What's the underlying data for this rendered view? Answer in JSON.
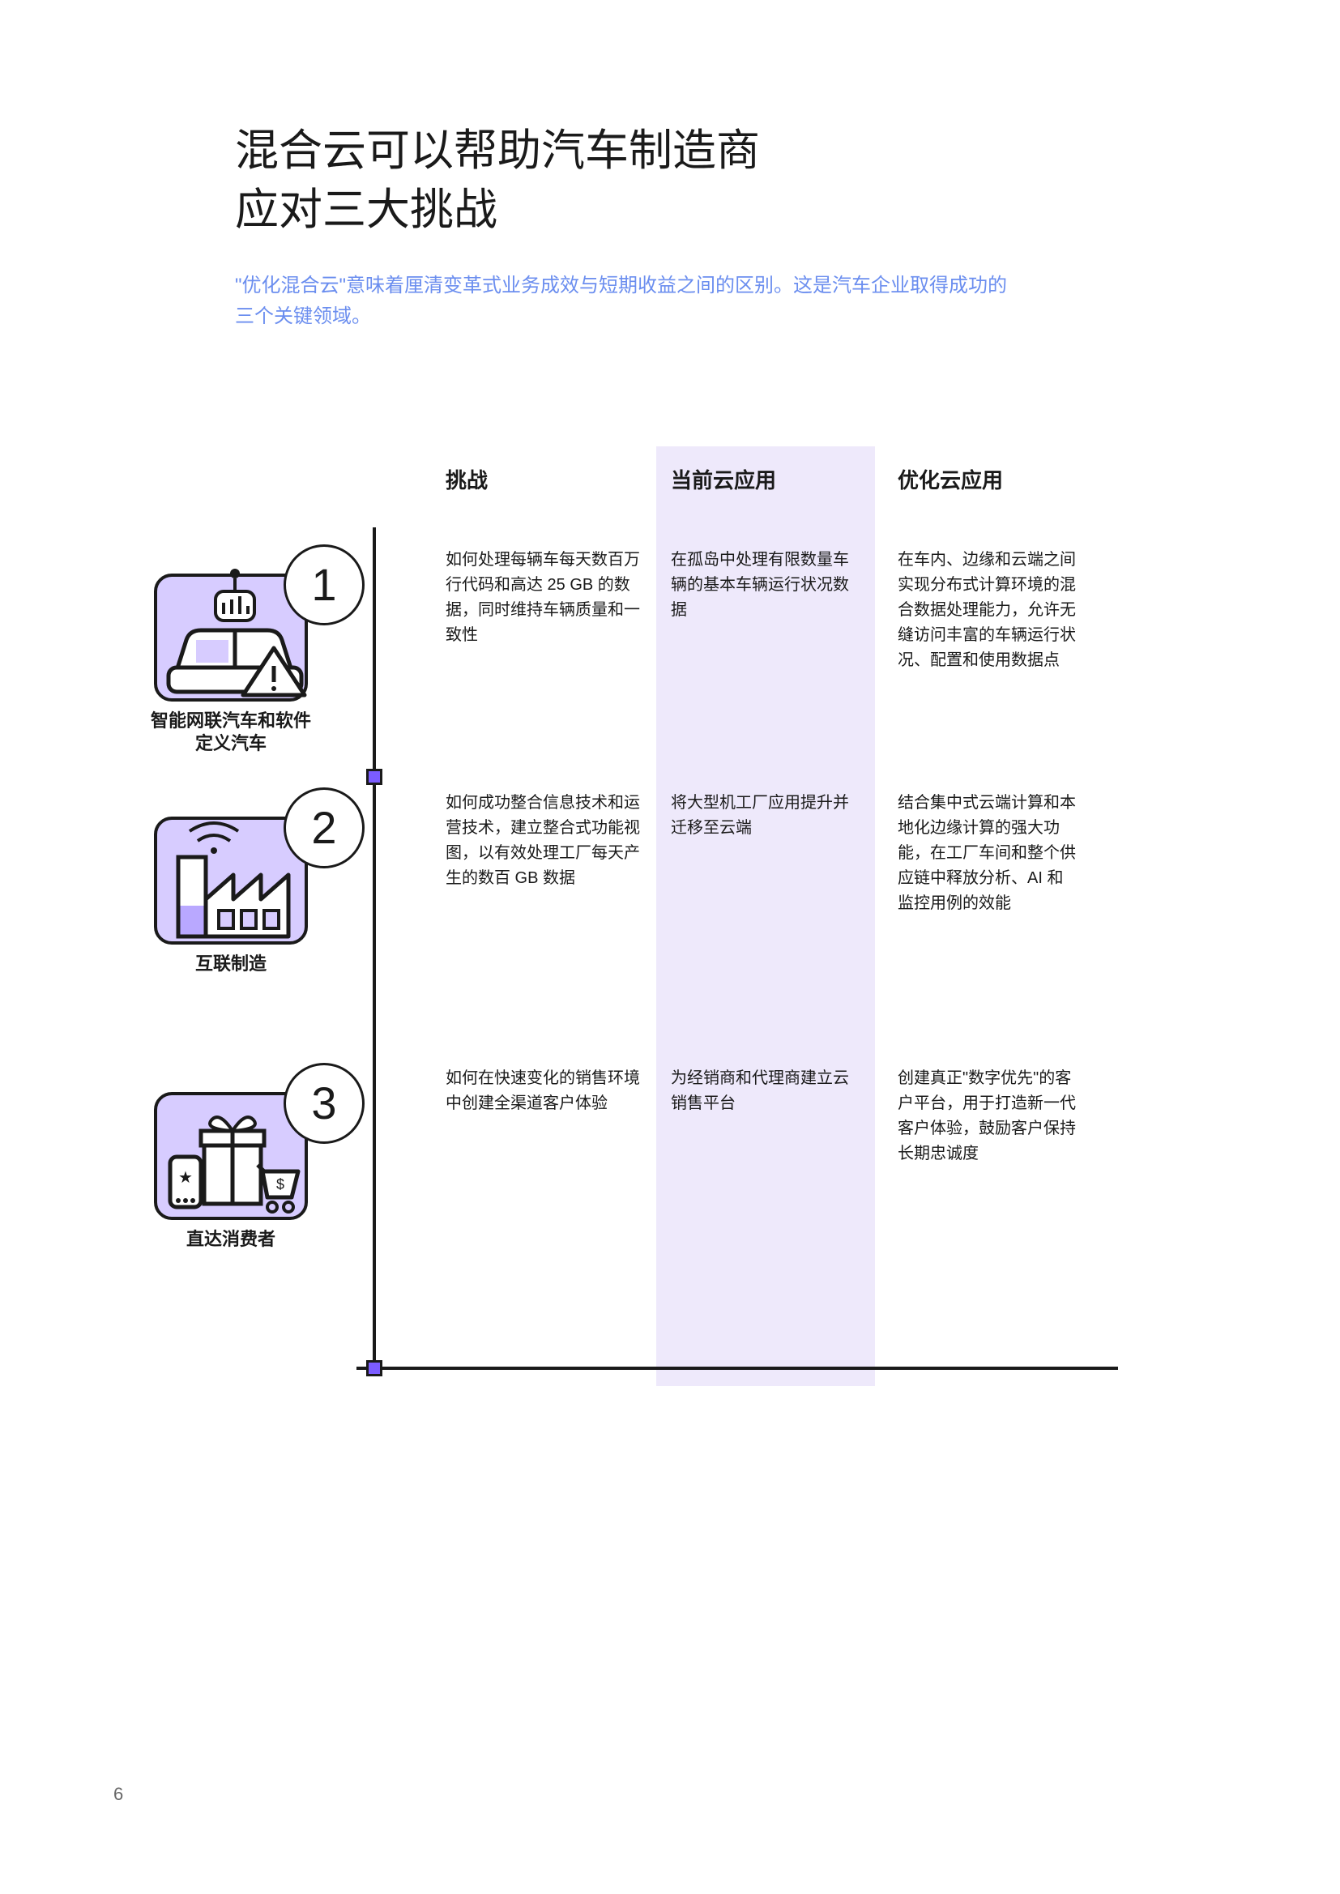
{
  "title": "混合云可以帮助汽车制造商\n应对三大挑战",
  "subtitle": "\"优化混合云\"意味着厘清变革式业务成效与短期收益之间的区别。这是汽车企业取得成功的三个关键领域。",
  "headers": {
    "challenge": "挑战",
    "current": "当前云应用",
    "optimized": "优化云应用"
  },
  "rows": [
    {
      "num": "1",
      "label": "智能网联汽车和软件定义汽车",
      "challenge": "如何处理每辆车每天数百万行代码和高达 25 GB 的数据，同时维持车辆质量和一致性",
      "current": "在孤岛中处理有限数量车辆的基本车辆运行状况数据",
      "optimized": "在车内、边缘和云端之间实现分布式计算环境的混合数据处理能力，允许无缝访问丰富的车辆运行状况、配置和使用数据点"
    },
    {
      "num": "2",
      "label": "互联制造",
      "challenge": "如何成功整合信息技术和运营技术，建立整合式功能视图，以有效处理工厂每天产生的数百 GB 数据",
      "current": "将大型机工厂应用提升并迁移至云端",
      "optimized": "结合集中式云端计算和本地化边缘计算的强大功能，在工厂车间和整个供应链中释放分析、AI 和监控用例的效能"
    },
    {
      "num": "3",
      "label": "直达消费者",
      "challenge": "如何在快速变化的销售环境中创建全渠道客户体验",
      "current": "为经销商和代理商建立云销售平台",
      "optimized": "创建真正\"数字优先\"的客户平台，用于打造新一代客户体验，鼓励客户保持长期忠诚度"
    }
  ],
  "colors": {
    "accent_purple": "#7b5cff",
    "icon_bg": "#d7ccff",
    "col_highlight": "#eee9fb",
    "subtitle": "#6b8eef",
    "line": "#1a1a1a"
  },
  "page_number": "6"
}
